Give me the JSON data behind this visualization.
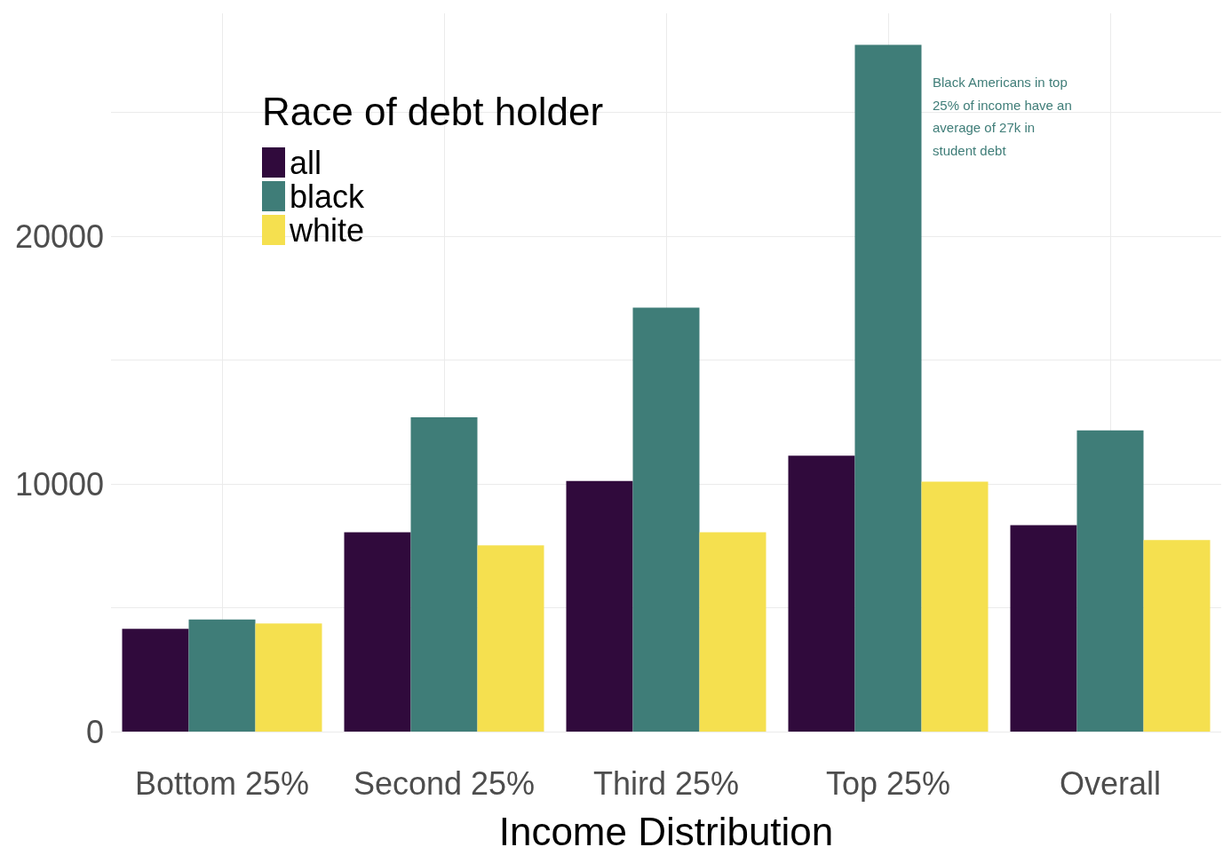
{
  "chart_data": {
    "type": "bar",
    "xlabel": "Income Distribution",
    "legend_title": "Race of debt holder",
    "categories": [
      "Bottom 25%",
      "Second 25%",
      "Third 25%",
      "Top 25%",
      "Overall"
    ],
    "series": [
      {
        "name": "all",
        "color": "#300a3c",
        "values": [
          4150,
          8050,
          10120,
          11140,
          8330
        ]
      },
      {
        "name": "black",
        "color": "#3f7d78",
        "values": [
          4530,
          12690,
          17120,
          27730,
          12160
        ]
      },
      {
        "name": "white",
        "color": "#f5e04f",
        "values": [
          4360,
          7520,
          8050,
          10090,
          7730
        ]
      }
    ],
    "ylim": [
      0,
      29000
    ],
    "yticks": [
      0,
      {
        "value": 5000,
        "label": null
      },
      10000,
      {
        "value": 15000,
        "label": null
      },
      20000,
      {
        "value": 25000,
        "label": null
      }
    ],
    "grid": true,
    "legend": "top left",
    "annotations": [
      "Black Americans in top 25% of income have an average of 27k in student debt"
    ]
  }
}
